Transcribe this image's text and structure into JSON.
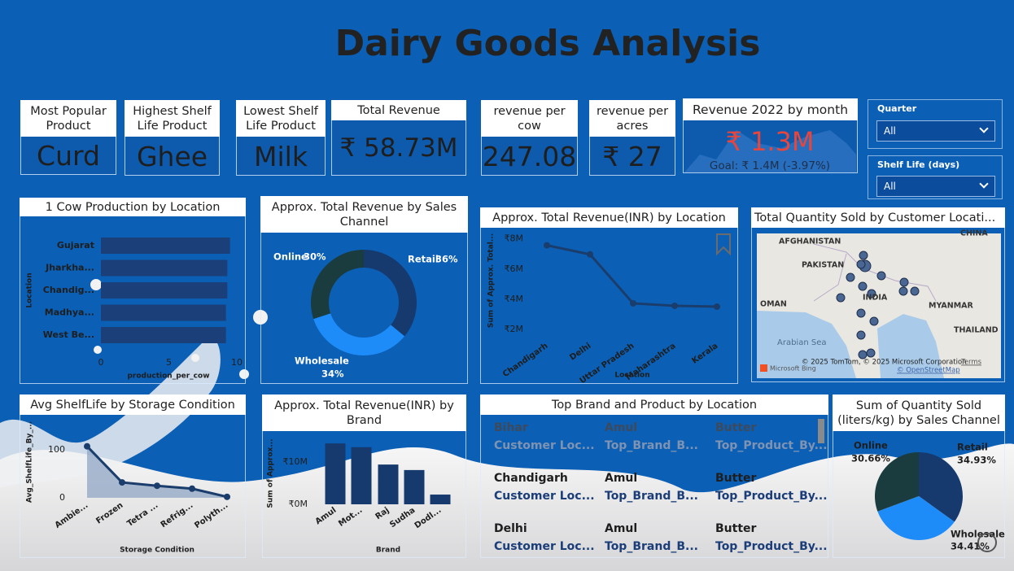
{
  "title": "Dairy Goods Analysis",
  "cards": [
    {
      "label": "Most Popular Product",
      "value": "Curd"
    },
    {
      "label": "Highest Shelf Life Product",
      "value": "Ghee"
    },
    {
      "label": "Lowest Shelf Life Product",
      "value": "Milk"
    },
    {
      "label": "Total Revenue",
      "value": "₹ 58.73M"
    },
    {
      "label": "revenue per cow",
      "value": "247.08"
    },
    {
      "label": "revenue per acres",
      "value": "₹ 27"
    }
  ],
  "kpi": {
    "title": "Revenue 2022 by month",
    "value": "₹ 1.3M",
    "goal": "Goal: ₹ 1.4M (-3.97%)"
  },
  "slicers": [
    {
      "label": "Quarter",
      "value": "All"
    },
    {
      "label": "Shelf Life (days)",
      "value": "All"
    }
  ],
  "chart_data": [
    {
      "type": "hbar",
      "title": "1 Cow Production by Location",
      "categories": [
        "Gujarat",
        "Jharkha...",
        "Chandig...",
        "Madhya...",
        "West Be..."
      ],
      "values": [
        9.5,
        9.3,
        9.3,
        9.2,
        9.2
      ],
      "color": "#1b3f78",
      "xlim": [
        0,
        10
      ],
      "xticks": [
        0,
        5,
        10
      ],
      "x_label": "production_per_cow",
      "y_label": "Location"
    },
    {
      "type": "donut",
      "title": "Approx. Total Revenue by Sales Channel",
      "categories": [
        "Retail",
        "Wholesale",
        "Online"
      ],
      "values": [
        36,
        34,
        30
      ],
      "value_labels": [
        "36%",
        "34%",
        "30%"
      ],
      "colors": [
        "#163a6e",
        "#1e8cf8",
        "#1a3c3e"
      ]
    },
    {
      "type": "line",
      "title": "Approx. Total Revenue(INR) by Location",
      "categories": [
        "Chandigarh",
        "Delhi",
        "Uttar Pradesh",
        "Maharashtra",
        "Kerala"
      ],
      "values": [
        7570000,
        6970000,
        3730000,
        3570000,
        3510000
      ],
      "color": "#1a3d6b",
      "ylim": [
        1200000,
        8300000
      ],
      "yticks": [
        {
          "value": 2000000,
          "label": "₹2M"
        },
        {
          "value": 4000000,
          "label": "₹4M"
        },
        {
          "value": 6000000,
          "label": "₹6M"
        },
        {
          "value": 8000000,
          "label": "₹8M"
        }
      ],
      "x_label": "Location",
      "y_label": "Sum of Approx. Total..."
    },
    {
      "type": "area",
      "title": "Avg ShelfLife by Storage Condition",
      "categories": [
        "Ambie...",
        "Frozen",
        "Tetra ...",
        "Refrig...",
        "Polyth..."
      ],
      "values": [
        107,
        32,
        25,
        19,
        2
      ],
      "color": "#1a3d6b",
      "ylim": [
        0,
        120
      ],
      "yticks": [
        0,
        100
      ],
      "x_label": "Storage Condition",
      "y_label": "Avg_ShelfLife_By_..."
    },
    {
      "type": "bar",
      "title": "Approx. Total Revenue(INR) by Brand",
      "categories": [
        "Amul",
        "Mot...",
        "Raj",
        "Sudha",
        "Dodl..."
      ],
      "values": [
        14400000,
        13500000,
        9400000,
        8100000,
        2300000
      ],
      "color": "#163a6e",
      "ylim": [
        0,
        15000000
      ],
      "yticks": [
        {
          "value": 0,
          "label": "₹0M"
        },
        {
          "value": 10000000,
          "label": "₹10M"
        }
      ],
      "x_label": "Brand",
      "y_label": "Sum of Approx..."
    },
    {
      "type": "pie",
      "title": "Sum of Quantity Sold (liters/kg) by Sales Channel",
      "categories": [
        "Retail",
        "Wholesale",
        "Online"
      ],
      "values": [
        34.93,
        34.41,
        30.66
      ],
      "value_labels": [
        "34.93%",
        "34.41%",
        "30.66%"
      ],
      "colors": [
        "#163a6e",
        "#1e8cf8",
        "#1a3c3e"
      ]
    }
  ],
  "map": {
    "title": "Total Quantity Sold by Customer Locati...",
    "labels": [
      "AFGHANISTAN",
      "PAKISTAN",
      "INDIA",
      "OMAN",
      "Arabian Sea",
      "MYANMAR",
      "THAILAND",
      "CHINA"
    ],
    "attribution": "© 2025 TomTom, © 2025 Microsoft Corporation",
    "terms": "Terms",
    "osm": "© OpenStreetMap",
    "provider": "Microsoft Bing"
  },
  "table": {
    "title": "Top Brand and Product by Location",
    "rows": [
      [
        "Bihar",
        "Amul",
        "Butter"
      ],
      [
        "Chandigarh",
        "Amul",
        "Butter"
      ],
      [
        "Delhi",
        "Amul",
        "Butter"
      ]
    ],
    "sub_labels": [
      "Customer Loc...",
      "Top_Brand_B...",
      "Top_Product_By..."
    ]
  }
}
